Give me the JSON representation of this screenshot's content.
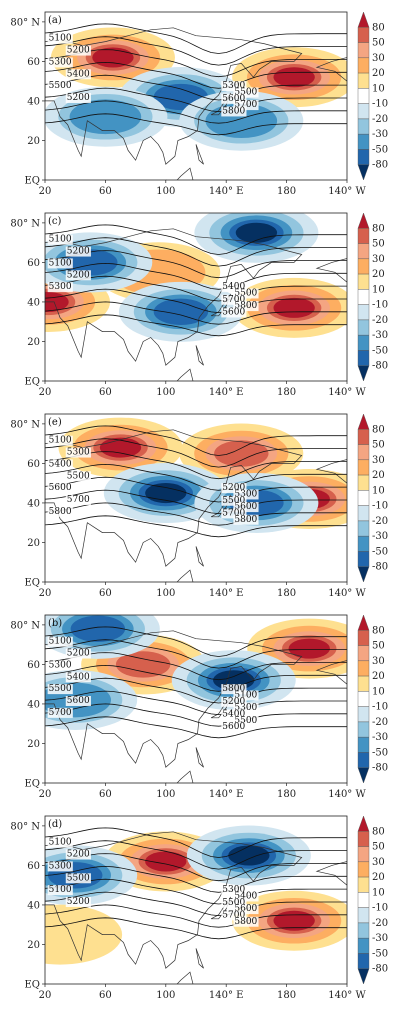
{
  "colorbar": {
    "levels": [
      "80",
      "50",
      "30",
      "20",
      "10",
      "-10",
      "-20",
      "-30",
      "-50",
      "-80"
    ],
    "colors": [
      "#b2182b",
      "#d6604d",
      "#f4a582",
      "#fdae61",
      "#fee090",
      "#ffffff",
      "#d1e5f0",
      "#92c5de",
      "#4393c3",
      "#2166ac",
      "#053061"
    ]
  },
  "axis": {
    "x_ticks": [
      "20",
      "60",
      "100",
      "140° E",
      "180",
      "140° W"
    ],
    "y_ticks": [
      "80° N",
      "60",
      "40",
      "20",
      "EQ"
    ]
  },
  "panels": [
    {
      "label": "(a)",
      "contours": [
        "5100",
        "5200",
        "5300",
        "5400",
        "5500",
        "5200",
        "5300",
        "5500",
        "5600",
        "5700",
        "5800"
      ],
      "anomalies": [
        {
          "lon": 65,
          "lat": 62,
          "value": 80
        },
        {
          "lon": 185,
          "lat": 52,
          "value": 80
        },
        {
          "lon": 110,
          "lat": 42,
          "value": -50
        },
        {
          "lon": 60,
          "lat": 32,
          "value": -30
        },
        {
          "lon": 150,
          "lat": 30,
          "value": -30
        }
      ]
    },
    {
      "label": "(c)",
      "contours": [
        "5100",
        "5200",
        "5100",
        "5200",
        "5300",
        "5400",
        "5500",
        "5700",
        "5800",
        "5600"
      ],
      "anomalies": [
        {
          "lon": 22,
          "lat": 40,
          "value": 80
        },
        {
          "lon": 185,
          "lat": 37,
          "value": 80
        },
        {
          "lon": 95,
          "lat": 55,
          "value": 20
        },
        {
          "lon": 160,
          "lat": 75,
          "value": -80
        },
        {
          "lon": 50,
          "lat": 60,
          "value": -50
        },
        {
          "lon": 110,
          "lat": 35,
          "value": -50
        }
      ]
    },
    {
      "label": "(e)",
      "contours": [
        "5100",
        "5300",
        "5400",
        "5500",
        "5600",
        "5700",
        "5800",
        "5200",
        "5300",
        "5500",
        "5600",
        "5700",
        "5800"
      ],
      "anomalies": [
        {
          "lon": 70,
          "lat": 68,
          "value": 80
        },
        {
          "lon": 150,
          "lat": 65,
          "value": 50
        },
        {
          "lon": 195,
          "lat": 42,
          "value": 80
        },
        {
          "lon": 100,
          "lat": 45,
          "value": -80
        },
        {
          "lon": 160,
          "lat": 40,
          "value": -50
        }
      ]
    },
    {
      "label": "(b)",
      "contours": [
        "5100",
        "5200",
        "5300",
        "5400",
        "5500",
        "5600",
        "5700",
        "5800",
        "5100",
        "5200",
        "5300",
        "5400",
        "5500",
        "5600"
      ],
      "anomalies": [
        {
          "lon": 85,
          "lat": 60,
          "value": 50
        },
        {
          "lon": 195,
          "lat": 68,
          "value": 80
        },
        {
          "lon": 55,
          "lat": 78,
          "value": -50
        },
        {
          "lon": 145,
          "lat": 52,
          "value": -80
        },
        {
          "lon": 40,
          "lat": 42,
          "value": -30
        }
      ]
    },
    {
      "label": "(d)",
      "contours": [
        "5100",
        "5200",
        "5300",
        "5500",
        "5100",
        "5200",
        "5300",
        "5400",
        "5500",
        "5600",
        "5700",
        "5800"
      ],
      "anomalies": [
        {
          "lon": 100,
          "lat": 62,
          "value": 80
        },
        {
          "lon": 185,
          "lat": 32,
          "value": 80
        },
        {
          "lon": 40,
          "lat": 55,
          "value": -50
        },
        {
          "lon": 155,
          "lat": 65,
          "value": -80
        },
        {
          "lon": 30,
          "lat": 25,
          "value": 10
        }
      ]
    }
  ]
}
